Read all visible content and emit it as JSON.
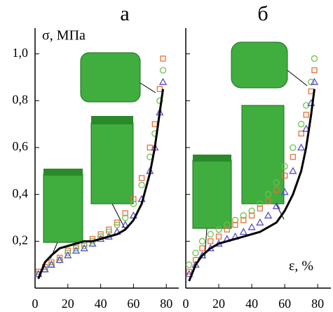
{
  "chart_data": [
    {
      "type": "scatter",
      "title": "а",
      "y_label": "σ, МПа",
      "x": [
        2,
        6,
        10,
        15,
        20,
        25,
        30,
        35,
        40,
        45,
        50,
        55,
        60,
        65,
        70,
        73,
        76,
        78
      ],
      "xlim": [
        0,
        87.6
      ],
      "xticks": [
        0,
        20,
        40,
        60,
        80
      ],
      "ylim": [
        0,
        1.11
      ],
      "yticks": [
        {
          "value": 0.2,
          "label": "0,2"
        },
        {
          "value": 0.4,
          "label": "0,4"
        },
        {
          "value": 0.6,
          "label": "0,6"
        },
        {
          "value": 0.8,
          "label": "0,8"
        },
        {
          "value": 1.0,
          "label": "1,0"
        }
      ],
      "series": [
        {
          "color": "#e8703a",
          "marker": "square",
          "values": [
            0.07,
            0.09,
            0.11,
            0.13,
            0.16,
            0.18,
            0.19,
            0.21,
            0.23,
            0.25,
            0.28,
            0.32,
            0.38,
            0.47,
            0.6,
            0.7,
            0.85,
            0.98
          ]
        },
        {
          "color": "#6cc24a",
          "marker": "circle",
          "values": [
            0.06,
            0.08,
            0.1,
            0.12,
            0.15,
            0.17,
            0.18,
            0.2,
            0.22,
            0.24,
            0.27,
            0.3,
            0.36,
            0.44,
            0.56,
            0.66,
            0.8,
            0.93
          ]
        },
        {
          "color": "#5a4fc8",
          "marker": "triangle",
          "values": [
            0.06,
            0.08,
            0.1,
            0.12,
            0.14,
            0.16,
            0.17,
            0.19,
            0.21,
            0.22,
            0.24,
            0.27,
            0.31,
            0.38,
            0.5,
            0.6,
            0.75,
            0.88
          ]
        },
        {
          "color": "#000000",
          "marker": "line",
          "values": [
            0.04,
            0.11,
            0.14,
            0.17,
            0.18,
            0.19,
            0.2,
            0.2,
            0.21,
            0.22,
            0.23,
            0.25,
            0.29,
            0.36,
            0.49,
            0.6,
            0.75,
            0.85
          ]
        }
      ]
    },
    {
      "type": "scatter",
      "title": "б",
      "x_label": "ε, %",
      "x": [
        2,
        6,
        10,
        15,
        20,
        25,
        30,
        35,
        40,
        45,
        50,
        55,
        60,
        65,
        70,
        73,
        76,
        78
      ],
      "xlim": [
        0,
        88
      ],
      "xticks": [
        0,
        20,
        40,
        60,
        80
      ],
      "ylim": [
        0,
        1.11
      ],
      "yticks": [
        0.2,
        0.4,
        0.6,
        0.8,
        1.0
      ],
      "series": [
        {
          "color": "#6cc24a",
          "marker": "circle",
          "values": [
            0.1,
            0.15,
            0.2,
            0.23,
            0.25,
            0.27,
            0.29,
            0.31,
            0.33,
            0.36,
            0.4,
            0.45,
            0.52,
            0.6,
            0.7,
            0.78,
            0.88,
            0.98
          ]
        },
        {
          "color": "#e8703a",
          "marker": "square",
          "values": [
            0.07,
            0.12,
            0.17,
            0.2,
            0.22,
            0.25,
            0.27,
            0.29,
            0.31,
            0.34,
            0.37,
            0.42,
            0.48,
            0.56,
            0.66,
            0.74,
            0.84,
            0.93
          ]
        },
        {
          "color": "#5a4fc8",
          "marker": "triangle",
          "values": [
            0.06,
            0.1,
            0.14,
            0.17,
            0.19,
            0.21,
            0.22,
            0.24,
            0.26,
            0.28,
            0.31,
            0.35,
            0.41,
            0.5,
            0.6,
            0.68,
            0.79,
            0.88
          ]
        },
        {
          "color": "#000000",
          "marker": "line",
          "values": [
            0.03,
            0.1,
            0.14,
            0.17,
            0.19,
            0.2,
            0.21,
            0.22,
            0.23,
            0.24,
            0.26,
            0.28,
            0.33,
            0.4,
            0.5,
            0.6,
            0.74,
            0.85
          ]
        }
      ]
    }
  ]
}
